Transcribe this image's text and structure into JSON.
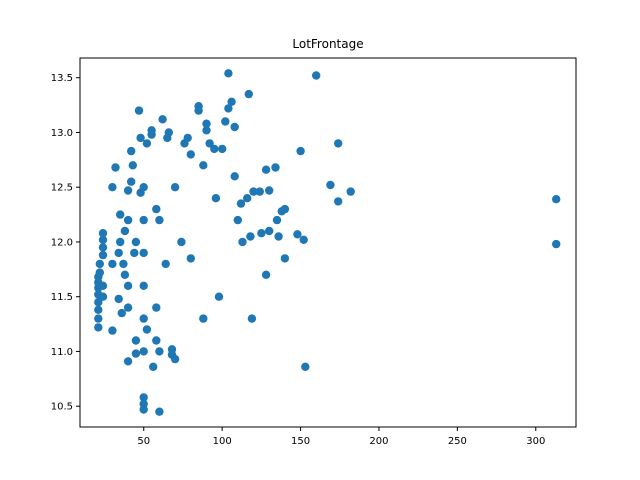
{
  "chart_data": {
    "type": "scatter",
    "title": "LotFrontage",
    "xlabel": "",
    "ylabel": "",
    "xlim": [
      9.35,
      325.65
    ],
    "ylim": [
      10.31,
      13.68
    ],
    "xticks": [
      50,
      100,
      150,
      200,
      250,
      300
    ],
    "xtick_labels": [
      "50",
      "100",
      "150",
      "200",
      "250",
      "300"
    ],
    "yticks": [
      10.5,
      11.0,
      11.5,
      12.0,
      12.5,
      13.0,
      13.5
    ],
    "ytick_labels": [
      "10.5",
      "11.0",
      "11.5",
      "12.0",
      "12.5",
      "13.0",
      "13.5"
    ],
    "grid": false,
    "legend": "none",
    "color": "#1f77b4",
    "points": [
      [
        21,
        11.22
      ],
      [
        21,
        11.3
      ],
      [
        21,
        11.38
      ],
      [
        21,
        11.45
      ],
      [
        21,
        11.52
      ],
      [
        21,
        11.58
      ],
      [
        21,
        11.63
      ],
      [
        21,
        11.68
      ],
      [
        22,
        11.72
      ],
      [
        22,
        11.8
      ],
      [
        24,
        11.88
      ],
      [
        24,
        11.95
      ],
      [
        24,
        12.02
      ],
      [
        24,
        12.08
      ],
      [
        24,
        11.6
      ],
      [
        24,
        11.5
      ],
      [
        30,
        11.19
      ],
      [
        30,
        11.8
      ],
      [
        30,
        12.5
      ],
      [
        32,
        12.68
      ],
      [
        34,
        11.48
      ],
      [
        34,
        11.9
      ],
      [
        35,
        12.0
      ],
      [
        35,
        12.25
      ],
      [
        36,
        11.35
      ],
      [
        37,
        11.8
      ],
      [
        38,
        12.1
      ],
      [
        38,
        11.7
      ],
      [
        40,
        10.91
      ],
      [
        40,
        11.4
      ],
      [
        40,
        11.6
      ],
      [
        40,
        12.2
      ],
      [
        40,
        12.47
      ],
      [
        42,
        12.83
      ],
      [
        42,
        12.55
      ],
      [
        43,
        12.7
      ],
      [
        44,
        11.9
      ],
      [
        45,
        12.0
      ],
      [
        45,
        11.1
      ],
      [
        45,
        10.98
      ],
      [
        47,
        13.2
      ],
      [
        48,
        12.95
      ],
      [
        48,
        12.45
      ],
      [
        50,
        10.58
      ],
      [
        50,
        10.52
      ],
      [
        50,
        10.47
      ],
      [
        50,
        11.0
      ],
      [
        50,
        11.3
      ],
      [
        50,
        11.6
      ],
      [
        50,
        11.9
      ],
      [
        50,
        12.2
      ],
      [
        50,
        12.5
      ],
      [
        52,
        11.2
      ],
      [
        52,
        12.9
      ],
      [
        55,
        12.98
      ],
      [
        55,
        13.02
      ],
      [
        56,
        10.86
      ],
      [
        58,
        11.1
      ],
      [
        58,
        11.4
      ],
      [
        58,
        12.3
      ],
      [
        60,
        10.45
      ],
      [
        60,
        11.0
      ],
      [
        60,
        12.2
      ],
      [
        62,
        13.12
      ],
      [
        64,
        11.8
      ],
      [
        65,
        12.95
      ],
      [
        66,
        13.0
      ],
      [
        68,
        11.02
      ],
      [
        68,
        10.97
      ],
      [
        70,
        10.93
      ],
      [
        70,
        12.5
      ],
      [
        74,
        12.0
      ],
      [
        76,
        12.9
      ],
      [
        78,
        12.95
      ],
      [
        80,
        12.8
      ],
      [
        80,
        11.85
      ],
      [
        85,
        13.24
      ],
      [
        85,
        13.2
      ],
      [
        88,
        12.7
      ],
      [
        88,
        11.3
      ],
      [
        90,
        13.08
      ],
      [
        90,
        13.02
      ],
      [
        92,
        12.9
      ],
      [
        95,
        12.85
      ],
      [
        96,
        12.4
      ],
      [
        98,
        11.5
      ],
      [
        100,
        12.85
      ],
      [
        102,
        13.1
      ],
      [
        104,
        13.54
      ],
      [
        104,
        13.22
      ],
      [
        106,
        13.28
      ],
      [
        108,
        13.05
      ],
      [
        108,
        12.6
      ],
      [
        110,
        12.2
      ],
      [
        112,
        12.35
      ],
      [
        113,
        12.0
      ],
      [
        116,
        12.4
      ],
      [
        117,
        13.35
      ],
      [
        118,
        12.05
      ],
      [
        119,
        11.3
      ],
      [
        120,
        12.46
      ],
      [
        124,
        12.46
      ],
      [
        125,
        12.08
      ],
      [
        128,
        12.66
      ],
      [
        128,
        11.7
      ],
      [
        130,
        12.1
      ],
      [
        130,
        12.47
      ],
      [
        134,
        12.68
      ],
      [
        135,
        12.2
      ],
      [
        136,
        12.05
      ],
      [
        138,
        12.28
      ],
      [
        140,
        12.3
      ],
      [
        140,
        11.85
      ],
      [
        148,
        12.07
      ],
      [
        150,
        12.83
      ],
      [
        152,
        12.02
      ],
      [
        153,
        10.86
      ],
      [
        160,
        13.52
      ],
      [
        169,
        12.52
      ],
      [
        174,
        12.37
      ],
      [
        174,
        12.9
      ],
      [
        182,
        12.46
      ],
      [
        313,
        12.39
      ],
      [
        313,
        11.98
      ]
    ]
  }
}
